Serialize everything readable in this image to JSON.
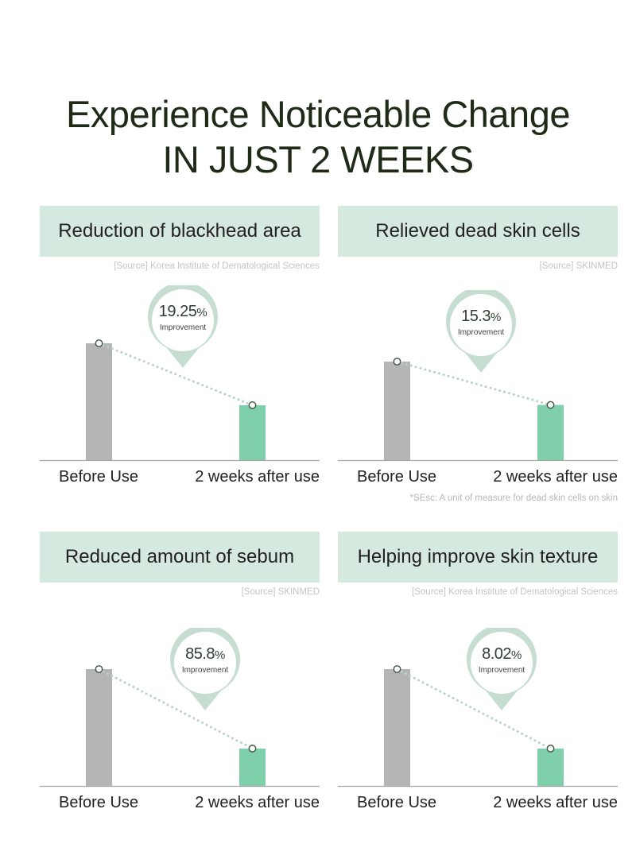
{
  "title": {
    "line1": "Experience Noticeable Change",
    "line2": "IN JUST 2 WEEKS"
  },
  "colors": {
    "before_bar": "#b5b5b5",
    "after_bar": "#7ecfaa",
    "heading_bg": "#d6e9df",
    "pin_border": "#c6ddd2",
    "axis": "#a9a9a9",
    "dotted_line": "#b9d3c8",
    "point_marker": "#3d5446"
  },
  "chart_data": [
    {
      "type": "bar",
      "title": "Reduction of blackhead area",
      "source": "[Source] Korea Institute of Dematological Sciences",
      "categories": [
        "Before Use",
        "2 weeks after use"
      ],
      "values": [
        100,
        47
      ],
      "improvement": {
        "value": "19.25",
        "unit": "%",
        "label": "Improvement"
      },
      "footnote": ""
    },
    {
      "type": "bar",
      "title": "Relieved dead skin cells",
      "source": "[Source] SKINMED",
      "categories": [
        "Before Use",
        "2 weeks after use"
      ],
      "values": [
        100,
        56
      ],
      "improvement": {
        "value": "15.3",
        "unit": "%",
        "label": "Improvement"
      },
      "footnote": "*SEsc: A unit of measure for dead skin cells on skin"
    },
    {
      "type": "bar",
      "title": "Reduced amount of sebum",
      "source": "[Source] SKINMED",
      "categories": [
        "Before Use",
        "2 weeks after use"
      ],
      "values": [
        100,
        32
      ],
      "improvement": {
        "value": "85.8",
        "unit": "%",
        "label": "Improvement"
      },
      "footnote": ""
    },
    {
      "type": "bar",
      "title": "Helping improve skin texture",
      "source": "[Source] Korea Institute of Dematological Sciences",
      "categories": [
        "Before Use",
        "2 weeks after use"
      ],
      "values": [
        100,
        32
      ],
      "improvement": {
        "value": "8.02",
        "unit": "%",
        "label": "Improvement"
      },
      "footnote": ""
    }
  ]
}
